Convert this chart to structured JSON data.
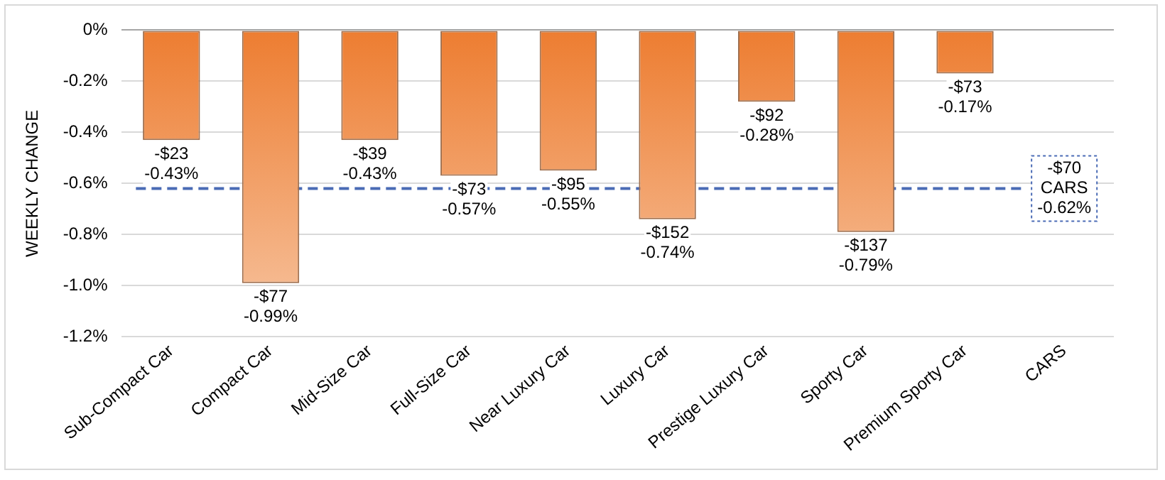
{
  "chart_data": {
    "type": "bar",
    "ylabel": "WEEKLY CHANGE",
    "categories": [
      "Sub-Compact Car",
      "Compact Car",
      "Mid-Size Car",
      "Full-Size Car",
      "Near Luxury Car",
      "Luxury Car",
      "Prestige Luxury Car",
      "Sporty Car",
      "Premium Sporty Car",
      "CARS"
    ],
    "values": [
      -0.43,
      -0.99,
      -0.43,
      -0.57,
      -0.55,
      -0.74,
      -0.28,
      -0.79,
      -0.17,
      null
    ],
    "value_labels": [
      "-$23\n-0.43%",
      "-$77\n-0.99%",
      "-$39\n-0.43%",
      "-$73\n-0.57%",
      "-$95\n-0.55%",
      "-$152\n-0.74%",
      "-$92\n-0.28%",
      "-$137\n-0.79%",
      "-$73\n-0.17%",
      null
    ],
    "color": "#ed7d31",
    "ylim": [
      -1.2,
      0
    ],
    "yticks": [
      {
        "value": -1.2,
        "label": "-1.2%"
      },
      {
        "value": -1.0,
        "label": "-1.0%"
      },
      {
        "value": -0.8,
        "label": "-0.8%"
      },
      {
        "value": -0.6,
        "label": "-0.6%"
      },
      {
        "value": -0.4,
        "label": "-0.4%"
      },
      {
        "value": -0.2,
        "label": "-0.2%"
      },
      {
        "value": 0,
        "label": "0%"
      }
    ],
    "grid": "y",
    "ref_lines": [
      {
        "axis": "y",
        "value": -0.62,
        "label": "-$70\nCARS\n-0.62%",
        "color": "#4a6bb5",
        "line_style": "dashed"
      }
    ]
  }
}
